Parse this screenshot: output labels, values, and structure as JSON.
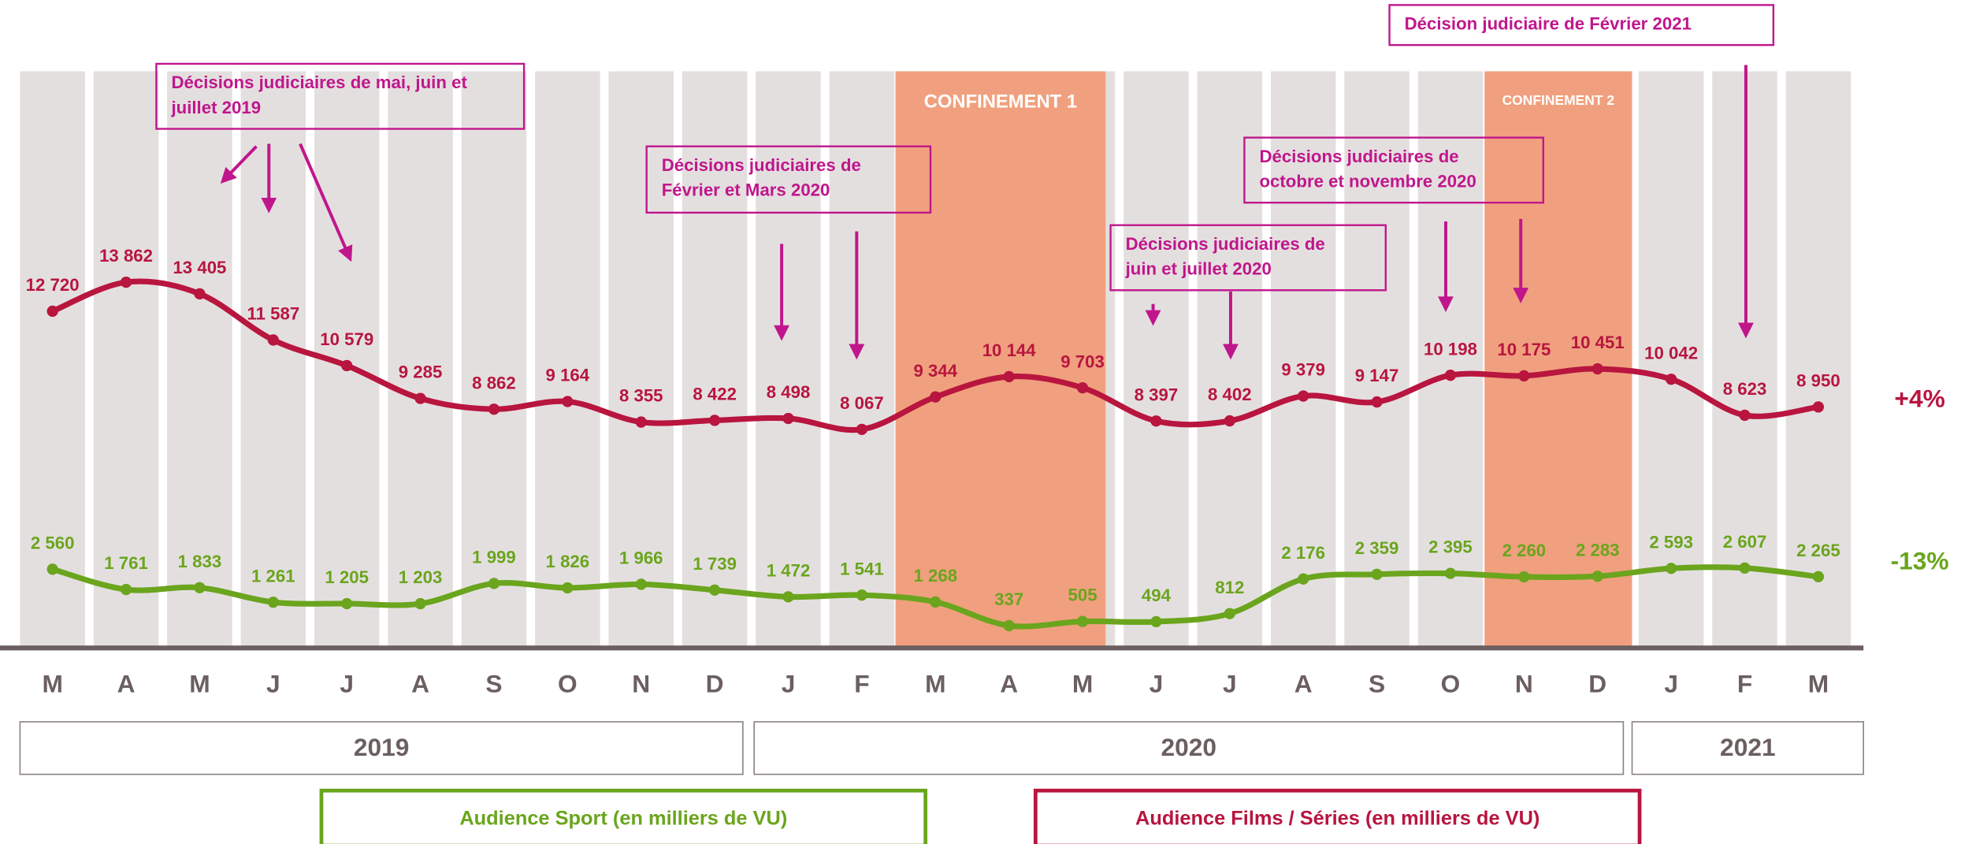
{
  "chart_data": {
    "type": "line",
    "categories": [
      "M",
      "A",
      "M",
      "J",
      "J",
      "A",
      "S",
      "O",
      "N",
      "D",
      "J",
      "F",
      "M",
      "A",
      "M",
      "J",
      "J",
      "A",
      "S",
      "O",
      "N",
      "D",
      "J",
      "F",
      "M"
    ],
    "years": [
      "2019",
      "2020",
      "2021"
    ],
    "series": [
      {
        "name": "Audience Films / Séries (en milliers de VU)",
        "color": "#b8153f",
        "values": [
          12720,
          13862,
          13405,
          11587,
          10579,
          9285,
          8862,
          9164,
          8355,
          8422,
          8498,
          8067,
          9344,
          10144,
          9703,
          8397,
          8402,
          9379,
          9147,
          10198,
          10175,
          10451,
          10042,
          8623,
          8950
        ],
        "value_labels": [
          "12 720",
          "13 862",
          "13 405",
          "11 587",
          "10 579",
          "9 285",
          "8 862",
          "9 164",
          "8 355",
          "8 422",
          "8 498",
          "8 067",
          "9 344",
          "10 144",
          "9 703",
          "8 397",
          "8 402",
          "9 379",
          "9 147",
          "10 198",
          "10 175",
          "10 451",
          "10 042",
          "8 623",
          "8 950"
        ],
        "change": "+4%"
      },
      {
        "name": "Audience Sport (en milliers de VU)",
        "color": "#6aa51d",
        "values": [
          2560,
          1761,
          1833,
          1261,
          1205,
          1203,
          1999,
          1826,
          1966,
          1739,
          1472,
          1541,
          1268,
          337,
          505,
          494,
          812,
          2176,
          2359,
          2395,
          2260,
          2283,
          2593,
          2607,
          2265
        ],
        "value_labels": [
          "2 560",
          "1 761",
          "1 833",
          "1 261",
          "1 205",
          "1 203",
          "1 999",
          "1 826",
          "1 966",
          "1 739",
          "1 472",
          "1 541",
          "1 268",
          "337",
          "505",
          "494",
          "812",
          "2 176",
          "2 359",
          "2 395",
          "2 260",
          "2 283",
          "2 593",
          "2 607",
          "2 265"
        ],
        "change": "-13%"
      }
    ],
    "shaded_periods": [
      "CONFINEMENT 1",
      "CONFINEMENT 2"
    ],
    "annotations": [
      {
        "lines": [
          "Décisions judiciaires de mai, juin et",
          "juillet 2019"
        ]
      },
      {
        "lines": [
          "Décisions judiciaires de",
          "Février et Mars 2020"
        ]
      },
      {
        "lines": [
          "Décisions judiciaires de",
          "juin et juillet 2020"
        ]
      },
      {
        "lines": [
          "Décisions judiciaires de",
          "octobre et novembre 2020"
        ]
      },
      {
        "lines": [
          "Décision judiciaire de Février 2021"
        ]
      }
    ]
  }
}
